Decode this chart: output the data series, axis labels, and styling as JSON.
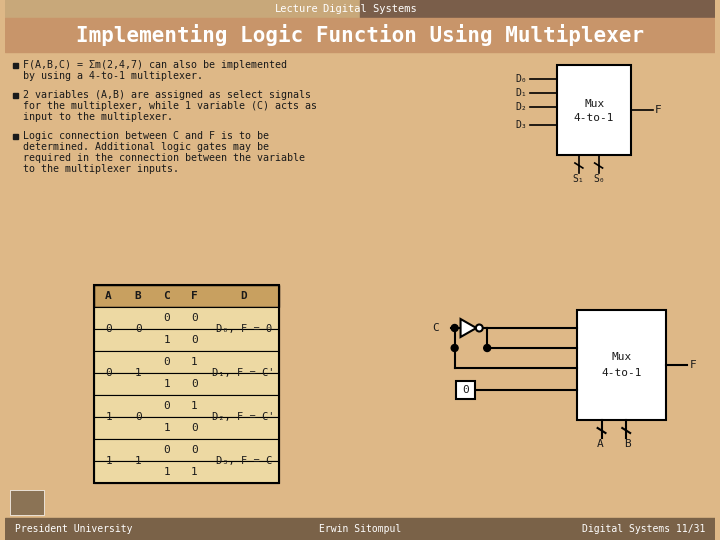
{
  "header_left_color": "#C8A87A",
  "header_right_color": "#7A5E4A",
  "title_bg_color": "#C8956A",
  "body_bg_color": "#DEB887",
  "title_text": "Implementing Logic Function Using Multiplexer",
  "header_lecture": "Lecture",
  "header_subject": "Digital Systems",
  "footer_left": "President University",
  "footer_center": "Erwin Sitompul",
  "footer_right": "Digital Systems 11/31",
  "footer_bg": "#7A6248",
  "table_header_bg": "#C8A060",
  "table_cell_bg": "#EDD9A3",
  "text_color": "#1A1A1A",
  "white": "#FFFFFF",
  "black": "#000000"
}
